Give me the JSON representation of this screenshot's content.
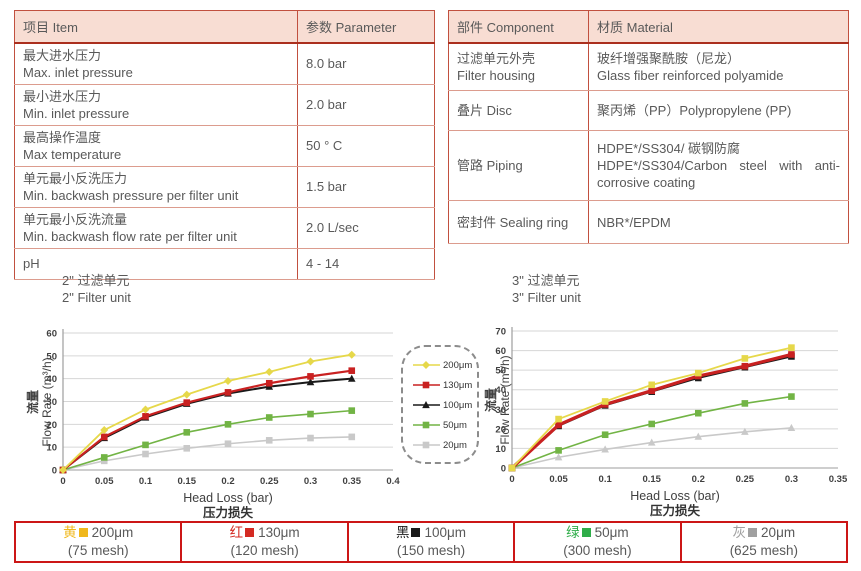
{
  "spec_table": {
    "headers": [
      "项目 Item",
      "参数 Parameter"
    ],
    "rows": [
      {
        "item_zh": "最大进水压力",
        "item_en": "Max. inlet pressure",
        "value": "8.0 bar"
      },
      {
        "item_zh": "最小进水压力",
        "item_en": "Min. inlet pressure",
        "value": "2.0 bar"
      },
      {
        "item_zh": "最高操作温度",
        "item_en": "Max temperature",
        "value": "50 ° C"
      },
      {
        "item_zh": "单元最小反洗压力",
        "item_en": "Min. backwash pressure per filter unit",
        "value": "1.5 bar"
      },
      {
        "item_zh": "单元最小反洗流量",
        "item_en": "Min. backwash flow rate per filter unit",
        "value": "2.0 L/sec"
      },
      {
        "item_zh": "pH",
        "item_en": "",
        "value": "4 - 14"
      }
    ]
  },
  "material_table": {
    "headers": [
      "部件 Component",
      "材质 Material"
    ],
    "rows": [
      {
        "component_zh": "过滤单元外壳",
        "component_en": "Filter housing",
        "material_zh": "玻纤增强聚酰胺（尼龙）",
        "material_en": "Glass fiber reinforced polyamide"
      },
      {
        "component_zh": "叠片 Disc",
        "component_en": "",
        "material_zh": "聚丙烯（PP）Polypropylene (PP)",
        "material_en": ""
      },
      {
        "component_zh": "管路 Piping",
        "component_en": "",
        "material_zh": "HDPE*/SS304/ 碳钢防腐",
        "material_en": "HDPE*/SS304/Carbon steel with anti-corrosive coating"
      },
      {
        "component_zh": "密封件 Sealing ring",
        "component_en": "",
        "material_zh": "NBR*/EPDM",
        "material_en": ""
      }
    ]
  },
  "chart_data": [
    {
      "type": "line",
      "title_zh": "2\"  过滤单元",
      "title_en": "2\"  Filter unit",
      "xlabel": "Head Loss (bar)",
      "xlabel_zh": "压力损失",
      "ylabel_zh": "流量",
      "ylabel_en": "Flow Rate (m³/h)",
      "xlim": [
        0,
        0.4
      ],
      "ylim": [
        0,
        60
      ],
      "xticks": [
        "0",
        "0.05",
        "0.1",
        "0.15",
        "0.2",
        "0.25",
        "0.3",
        "0.35",
        "0.4"
      ],
      "yticks": [
        0,
        10,
        20,
        30,
        40,
        50,
        60
      ],
      "x": [
        0,
        0.05,
        0.1,
        0.15,
        0.2,
        0.25,
        0.3,
        0.35
      ],
      "series": [
        {
          "name": "200μm",
          "color": "#e6d84a",
          "marker": "diamond",
          "width": 1.8,
          "values": [
            0,
            17.5,
            26.5,
            33,
            39,
            43,
            47.5,
            50.5
          ]
        },
        {
          "name": "130μm",
          "color": "#c92121",
          "marker": "square",
          "width": 2.2,
          "values": [
            0,
            14.5,
            23.5,
            29.5,
            34,
            38,
            41,
            43.5
          ]
        },
        {
          "name": "100μm",
          "color": "#1a1a1a",
          "marker": "triangle",
          "width": 2.0,
          "values": [
            0,
            14,
            23,
            29,
            33.5,
            36.5,
            38.5,
            40
          ]
        },
        {
          "name": "50μm",
          "color": "#72b445",
          "marker": "square",
          "width": 1.6,
          "values": [
            0,
            5.5,
            11,
            16.5,
            20,
            23,
            24.5,
            26
          ]
        },
        {
          "name": "20μm",
          "color": "#c9c9c9",
          "marker": "square",
          "width": 1.6,
          "values": [
            0,
            4,
            7,
            9.5,
            11.5,
            13,
            14,
            14.5
          ]
        }
      ]
    },
    {
      "type": "line",
      "title_zh": "3\"  过滤单元",
      "title_en": "3\"  Filter unit",
      "xlabel": "Head Loss (bar)",
      "xlabel_zh": "压力损失",
      "ylabel_zh": "流量",
      "ylabel_en": "Flow Rate (m³/h)",
      "xlim": [
        0,
        0.35
      ],
      "ylim": [
        0,
        70
      ],
      "xticks": [
        "0",
        "0.05",
        "0.1",
        "0.15",
        "0.2",
        "0.25",
        "0.3",
        "0.35"
      ],
      "yticks": [
        0,
        10,
        20,
        30,
        40,
        50,
        60,
        70
      ],
      "x": [
        0,
        0.05,
        0.1,
        0.15,
        0.2,
        0.25,
        0.3
      ],
      "series": [
        {
          "name": "200μm",
          "color": "#e6d84a",
          "marker": "square",
          "width": 1.8,
          "values": [
            0,
            25,
            34,
            42.5,
            48.5,
            56,
            61.5
          ]
        },
        {
          "name": "130μm",
          "color": "#c92121",
          "marker": "square",
          "width": 3.2,
          "values": [
            0,
            22,
            32.5,
            39.5,
            47,
            52,
            58
          ]
        },
        {
          "name": "100μm",
          "color": "#1a1a1a",
          "marker": "square",
          "width": 1.8,
          "values": [
            0,
            21.5,
            32,
            39,
            46,
            51.5,
            57
          ]
        },
        {
          "name": "50μm",
          "color": "#72b445",
          "marker": "square",
          "width": 1.6,
          "values": [
            0,
            9,
            17,
            22.5,
            28,
            33,
            36.5
          ]
        },
        {
          "name": "20μm",
          "color": "#c9c9c9",
          "marker": "triangle",
          "width": 1.6,
          "values": [
            0,
            5.5,
            9.5,
            13,
            16,
            18.5,
            20.5
          ]
        }
      ]
    }
  ],
  "legend": {
    "items": [
      {
        "label": "200μm",
        "color": "#e6d84a",
        "marker": "diamond"
      },
      {
        "label": "130μm",
        "color": "#c92121",
        "marker": "square"
      },
      {
        "label": "100μm",
        "color": "#1a1a1a",
        "marker": "triangle"
      },
      {
        "label": "50μm",
        "color": "#72b445",
        "marker": "square"
      },
      {
        "label": "20μm",
        "color": "#c9c9c9",
        "marker": "square"
      }
    ]
  },
  "footer_legend": {
    "items": [
      {
        "name_zh": "黄",
        "color": "#f0b81c",
        "size": "200μm",
        "mesh": "(75 mesh)"
      },
      {
        "name_zh": "红",
        "color": "#d42a22",
        "size": "130μm",
        "mesh": "(120 mesh)"
      },
      {
        "name_zh": "黑",
        "color": "#1a1a1a",
        "size": "100μm",
        "mesh": "(150 mesh)"
      },
      {
        "name_zh": "绿",
        "color": "#2fad49",
        "size": "50μm",
        "mesh": "(300 mesh)"
      },
      {
        "name_zh": "灰",
        "color": "#a0a0a0",
        "size": "20μm",
        "mesh": "(625 mesh)"
      }
    ]
  },
  "colors": {
    "table_border": "#c1503f",
    "table_header_bg": "#f8ddd3",
    "footer_border": "#cc1616",
    "gridline": "#d6d6d6",
    "axis": "#9e9e9e",
    "text": "#595959"
  }
}
